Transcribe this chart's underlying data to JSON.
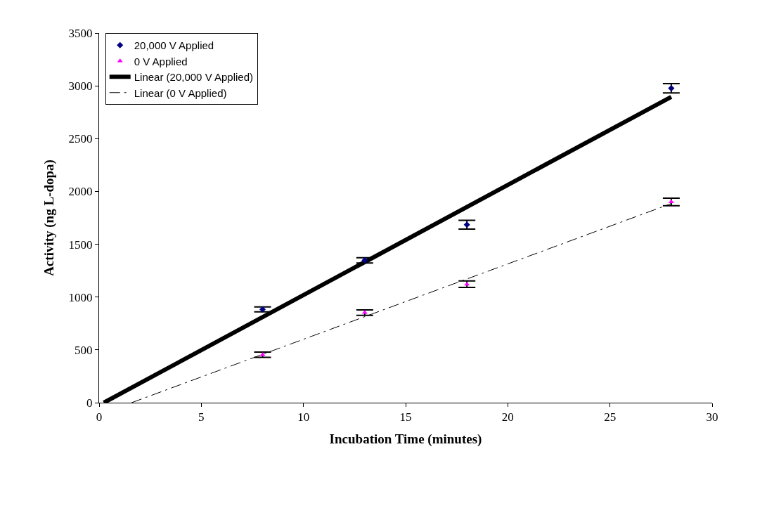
{
  "chart_data": {
    "type": "scatter",
    "xlabel": "Incubation Time (minutes)",
    "ylabel": "Activity (ng L-dopa)",
    "x": [
      8,
      13,
      18,
      28
    ],
    "series": [
      {
        "name": "20,000 V Applied",
        "color": "#000080",
        "marker": "diamond",
        "values": [
          883,
          1348,
          1685,
          2977
        ],
        "errors": [
          23,
          25,
          42,
          44
        ]
      },
      {
        "name": "0 V Applied",
        "color": "#ff00ff",
        "marker": "triangle",
        "values": [
          454,
          853,
          1122,
          1901
        ],
        "errors": [
          25,
          26,
          30,
          36
        ]
      },
      {
        "name": "Linear (20,000 V Applied)",
        "type": "line",
        "color": "#000000",
        "line_style": "solid",
        "x": [
          0.23,
          28
        ],
        "values": [
          0,
          2896
        ]
      },
      {
        "name": "Linear (0 V Applied)",
        "type": "line",
        "color": "#000000",
        "line_style": "dashed",
        "x": [
          1.59,
          28
        ],
        "values": [
          0,
          1885
        ]
      }
    ],
    "xlim": [
      0,
      30
    ],
    "xticks": [
      0,
      5,
      10,
      15,
      20,
      25,
      30
    ],
    "ylim": [
      0,
      3500
    ],
    "yticks": [
      0,
      500,
      1000,
      1500,
      2000,
      2500,
      3000,
      3500
    ],
    "legend": "top left"
  }
}
